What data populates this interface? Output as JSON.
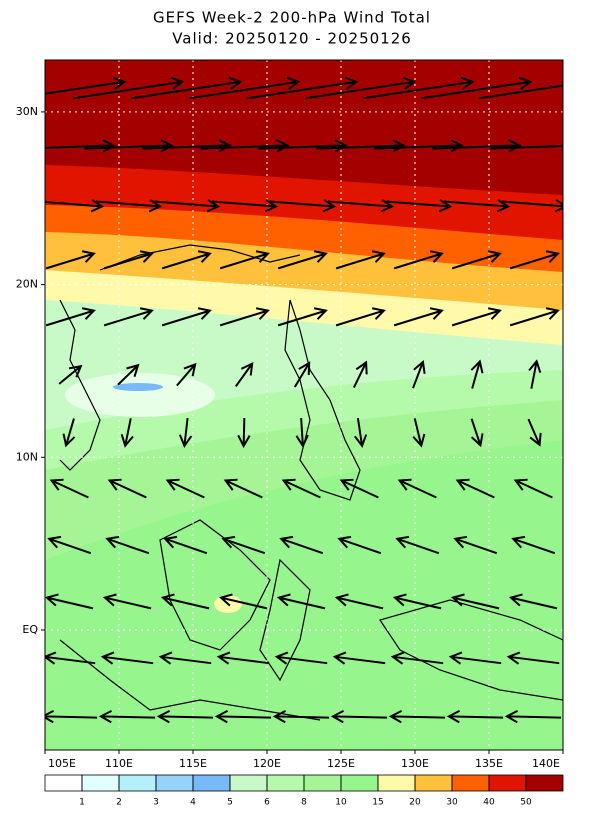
{
  "map": {
    "title": "GEFS Week-2 200-hPa Wind Total",
    "subtitle": "Valid: 20250120 - 20250126",
    "lon_ticks": [
      {
        "value": 105,
        "label": "105E"
      },
      {
        "value": 110,
        "label": "110E"
      },
      {
        "value": 115,
        "label": "115E"
      },
      {
        "value": 120,
        "label": "120E"
      },
      {
        "value": 125,
        "label": "125E"
      },
      {
        "value": 130,
        "label": "130E"
      },
      {
        "value": 135,
        "label": "135E"
      },
      {
        "value": 140,
        "label": "140E"
      }
    ],
    "lat_ticks": [
      {
        "value": 30,
        "label": "30N"
      },
      {
        "value": 20,
        "label": "20N"
      },
      {
        "value": 10,
        "label": "10N"
      },
      {
        "value": 0,
        "label": "EQ"
      }
    ],
    "colorbar": {
      "levels": [
        1,
        2,
        3,
        4,
        5,
        6,
        8,
        10,
        15,
        20,
        30,
        40,
        50
      ],
      "colors": [
        "#ffffff",
        "#e1ffff",
        "#b4f0fa",
        "#96d2fa",
        "#78b9fa",
        "#c8fac8",
        "#b4faaa",
        "#a5f596",
        "#96f58c",
        "#fffaaa",
        "#ffc03c",
        "#ff6000",
        "#e11400",
        "#a50000"
      ]
    }
  }
}
